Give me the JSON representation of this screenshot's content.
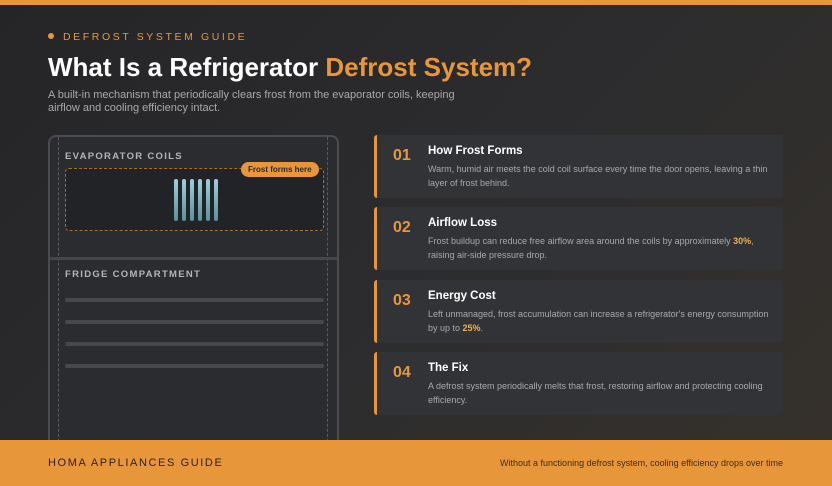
{
  "header": {
    "eyebrow": "DEFROST SYSTEM GUIDE",
    "title_start": "What Is a Refrigerator ",
    "title_highlight": "Defrost System?",
    "subtitle": "A built-in mechanism that periodically clears frost from the evaporator coils, keeping airflow and cooling efficiency intact."
  },
  "diagram": {
    "top_label": "EVAPORATOR COILS",
    "badge": "Frost forms here",
    "bottom_label": "FRIDGE COMPARTMENT"
  },
  "cards": [
    {
      "number": "01",
      "title": "How Frost Forms",
      "body_before": "Warm, humid air meets the cold coil surface every time the door opens, leaving a thin layer of frost behind.",
      "highlight": null,
      "body_after": null
    },
    {
      "number": "02",
      "title": "Airflow Loss",
      "body_before": "Frost buildup can reduce free airflow area around the coils by approximately ",
      "highlight": "30%",
      "body_after": ", raising air-side pressure drop."
    },
    {
      "number": "03",
      "title": "Energy Cost",
      "body_before": "Left unmanaged, frost accumulation can increase a refrigerator's energy consumption by up to ",
      "highlight": "25%",
      "body_after": "."
    },
    {
      "number": "04",
      "title": "The Fix",
      "body_before": "A defrost system periodically melts that frost, restoring airflow and protecting cooling efficiency.",
      "highlight": null,
      "body_after": null
    }
  ],
  "footer": {
    "brand": "HOMA APPLIANCES GUIDE",
    "note": "Without a functioning defrost system, cooling efficiency drops over time"
  }
}
